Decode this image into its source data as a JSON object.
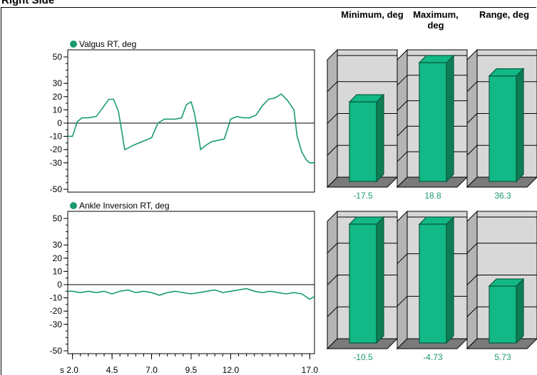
{
  "page": {
    "title": "Right Side"
  },
  "column_headers": [
    "Minimum, deg",
    "Maximum, deg",
    "Range, deg"
  ],
  "colors": {
    "series": "#1a9a72",
    "bar": "#12b886",
    "bar_dark": "#0a5a3c",
    "bar_side": "#0e7d56",
    "panel": "#d8d8d8",
    "panel_dark": "#b4b4b4",
    "floor": "#7a7a7a",
    "value_text": "#1a9a72"
  },
  "chart_data": [
    {
      "type": "line",
      "title": "Valgus RT, deg",
      "x_ticks": [
        "2.0",
        "4.5",
        "7.0",
        "9.5",
        "12.0",
        "17.0"
      ],
      "y_ticks": [
        50,
        30,
        20,
        10,
        0,
        -10,
        -20,
        -30,
        -50
      ],
      "ylim": [
        -50,
        50
      ],
      "series": [
        {
          "x": [
            1.7,
            2.0,
            2.3,
            2.6,
            3.0,
            3.5,
            4.0,
            4.3,
            4.6,
            4.9,
            5.1,
            5.3,
            5.5,
            5.8,
            6.2,
            6.6,
            7.0,
            7.4,
            7.8,
            8.1,
            8.5,
            8.9,
            9.2,
            9.5,
            9.7,
            9.9,
            10.1,
            10.4,
            10.8,
            11.2,
            11.6,
            12.0,
            12.4,
            12.8,
            13.2,
            13.6,
            14.0,
            14.4,
            14.8,
            15.2,
            15.6,
            16.0,
            16.2,
            16.5,
            16.8,
            17.0,
            17.3
          ],
          "y": [
            -10,
            -10,
            1,
            4,
            4,
            5,
            13,
            18,
            18,
            9,
            -5,
            -20,
            -19,
            -17,
            -15,
            -13,
            -11,
            0,
            3,
            3,
            3,
            4,
            14,
            16,
            8,
            -5,
            -20,
            -17,
            -14,
            -13,
            -12,
            3,
            5,
            4,
            4,
            6,
            13,
            18,
            19,
            22,
            17,
            10,
            -10,
            -22,
            -28,
            -30,
            -30
          ]
        }
      ]
    },
    {
      "type": "line",
      "title": "Ankle Inversion  RT, deg",
      "x_ticks": [
        "2.0",
        "4.5",
        "7.0",
        "9.5",
        "12.0",
        "17.0"
      ],
      "y_ticks": [
        50,
        30,
        20,
        10,
        0,
        -10,
        -20,
        -30,
        -50
      ],
      "ylim": [
        -50,
        50
      ],
      "series": [
        {
          "x": [
            1.7,
            2.0,
            2.5,
            3.0,
            3.5,
            4.0,
            4.5,
            5.0,
            5.5,
            6.0,
            6.5,
            7.0,
            7.5,
            8.0,
            8.5,
            9.0,
            9.5,
            10.0,
            10.5,
            11.0,
            11.5,
            12.0,
            12.5,
            13.0,
            13.5,
            14.0,
            14.5,
            15.0,
            15.5,
            16.0,
            16.5,
            17.0,
            17.3
          ],
          "y": [
            -5,
            -5,
            -6,
            -5,
            -6,
            -5,
            -7,
            -5,
            -4,
            -6,
            -5,
            -6,
            -8,
            -6,
            -5,
            -6,
            -7,
            -6,
            -5,
            -4,
            -6,
            -5,
            -4,
            -3,
            -5,
            -6,
            -5,
            -6,
            -7,
            -6,
            -7,
            -11,
            -9
          ]
        }
      ]
    },
    {
      "type": "bar",
      "categories": [
        "Minimum, deg",
        "Maximum, deg",
        "Range, deg"
      ],
      "rows": [
        {
          "values": [
            -17.5,
            18.8,
            36.3
          ],
          "labels": [
            "-17.5",
            "18.8",
            "36.3"
          ],
          "ranges": [
            [
              -30,
              -10
            ],
            [
              -30,
              20
            ],
            [
              -30,
              50
            ]
          ]
        },
        {
          "values": [
            -10.5,
            -4.73,
            5.73
          ],
          "labels": [
            "-10.5",
            "-4.73",
            "5.73"
          ],
          "ranges": [
            [
              -30,
              -10
            ],
            [
              -30,
              -15
            ],
            [
              -30,
              50
            ]
          ]
        }
      ]
    }
  ]
}
